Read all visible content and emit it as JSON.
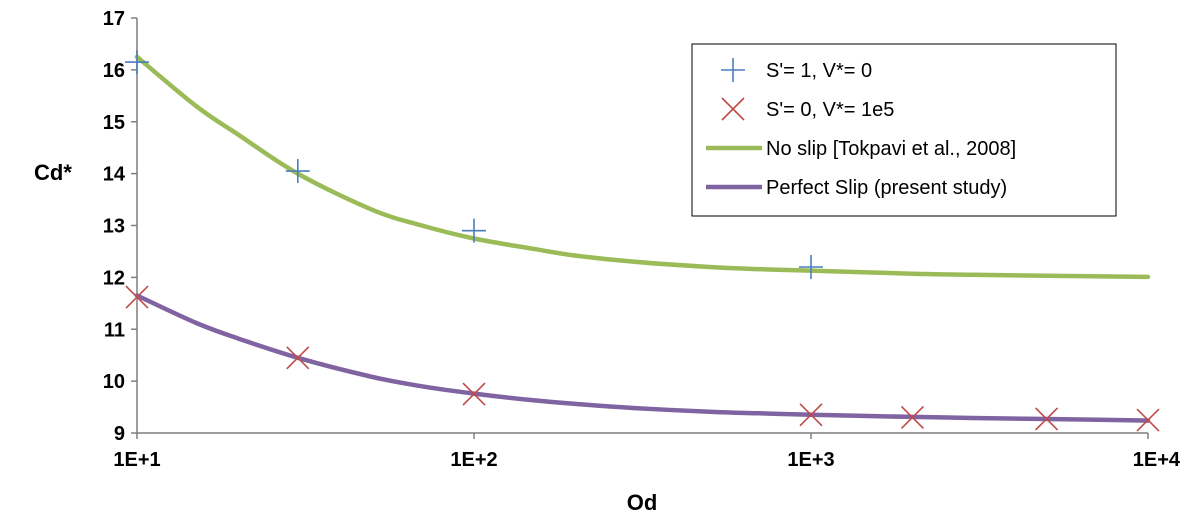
{
  "chart_data": {
    "type": "scatter",
    "title": "",
    "xlabel": "Od",
    "ylabel": "Cd*",
    "xscale": "log",
    "xlim": [
      10,
      10000
    ],
    "ylim": [
      9,
      17
    ],
    "xticks": [
      10,
      100,
      1000,
      10000
    ],
    "xtick_labels": [
      "1E+1",
      "1E+2",
      "1E+3",
      "1E+4"
    ],
    "yticks": [
      9,
      10,
      11,
      12,
      13,
      14,
      15,
      16,
      17
    ],
    "ytick_labels": [
      "9",
      "10",
      "11",
      "12",
      "13",
      "14",
      "15",
      "16",
      "17"
    ],
    "grid": false,
    "legend_position": "top-right",
    "series": [
      {
        "name": "S'= 1, V*= 0",
        "kind": "markers",
        "marker": "plus",
        "color": "#4a7ebb",
        "x": [
          10,
          30,
          100,
          1000
        ],
        "y": [
          16.15,
          14.05,
          12.9,
          12.2
        ]
      },
      {
        "name": "S'= 0, V*= 1e5",
        "kind": "markers",
        "marker": "x",
        "color": "#be4b48",
        "x": [
          10,
          30,
          100,
          1000,
          2000,
          5000,
          10000
        ],
        "y": [
          11.62,
          10.45,
          9.75,
          9.35,
          9.3,
          9.27,
          9.25
        ]
      },
      {
        "name": "No slip [Tokpavi et al., 2008]",
        "kind": "line",
        "color": "#9bbb59",
        "x": [
          10,
          15,
          20,
          30,
          50,
          70,
          100,
          150,
          200,
          300,
          500,
          700,
          1000,
          2000,
          3000,
          5000,
          10000
        ],
        "y": [
          16.25,
          15.3,
          14.75,
          14.0,
          13.3,
          13.0,
          12.75,
          12.55,
          12.42,
          12.3,
          12.2,
          12.16,
          12.13,
          12.07,
          12.05,
          12.03,
          12.01
        ]
      },
      {
        "name": "Perfect Slip (present study)",
        "kind": "line",
        "color": "#8064a2",
        "x": [
          10,
          15,
          20,
          30,
          50,
          70,
          100,
          150,
          200,
          300,
          500,
          700,
          1000,
          2000,
          3000,
          5000,
          10000
        ],
        "y": [
          11.65,
          11.12,
          10.82,
          10.45,
          10.08,
          9.9,
          9.76,
          9.63,
          9.56,
          9.48,
          9.41,
          9.38,
          9.35,
          9.31,
          9.29,
          9.27,
          9.24
        ]
      }
    ]
  }
}
